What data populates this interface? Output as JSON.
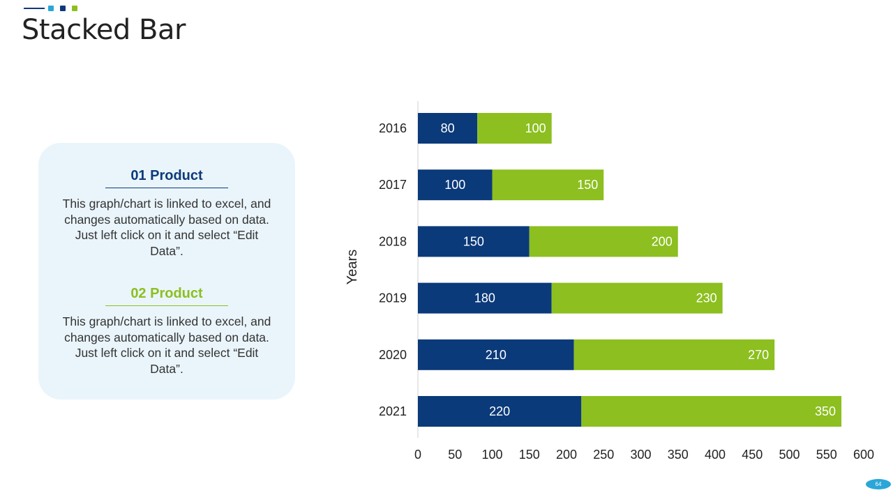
{
  "header": {
    "title": "Stacked Bar"
  },
  "panel": {
    "products": [
      {
        "heading": "01 Product",
        "description": "This graph/chart is linked to excel, and changes automatically based on data. Just left click on it and select “Edit Data”."
      },
      {
        "heading": "02 Product",
        "description": "This graph/chart is linked to excel, and changes automatically based on data. Just left click on it and select “Edit Data”."
      }
    ]
  },
  "chart_data": {
    "type": "bar",
    "orientation": "horizontal",
    "stacked": true,
    "title": "",
    "ylabel": "Years",
    "xlabel": "",
    "categories": [
      "2016",
      "2017",
      "2018",
      "2019",
      "2020",
      "2021"
    ],
    "series": [
      {
        "values": [
          80,
          100,
          150,
          180,
          210,
          220
        ],
        "color": "#0b3a7a"
      },
      {
        "values": [
          100,
          150,
          200,
          230,
          270,
          350
        ],
        "color": "#8cbf1f"
      }
    ],
    "xlim": [
      0,
      600
    ],
    "x_ticks": [
      "0",
      "50",
      "100",
      "150",
      "200",
      "250",
      "300",
      "350",
      "400",
      "450",
      "500",
      "550",
      "600"
    ],
    "grid": false,
    "legend": "none"
  },
  "footer": {
    "page_number": "64"
  },
  "colors": {
    "navy": "#0b3a7a",
    "green": "#8cbf1f",
    "sky": "#2aa7d8",
    "panel_bg": "#eaf5fb"
  }
}
